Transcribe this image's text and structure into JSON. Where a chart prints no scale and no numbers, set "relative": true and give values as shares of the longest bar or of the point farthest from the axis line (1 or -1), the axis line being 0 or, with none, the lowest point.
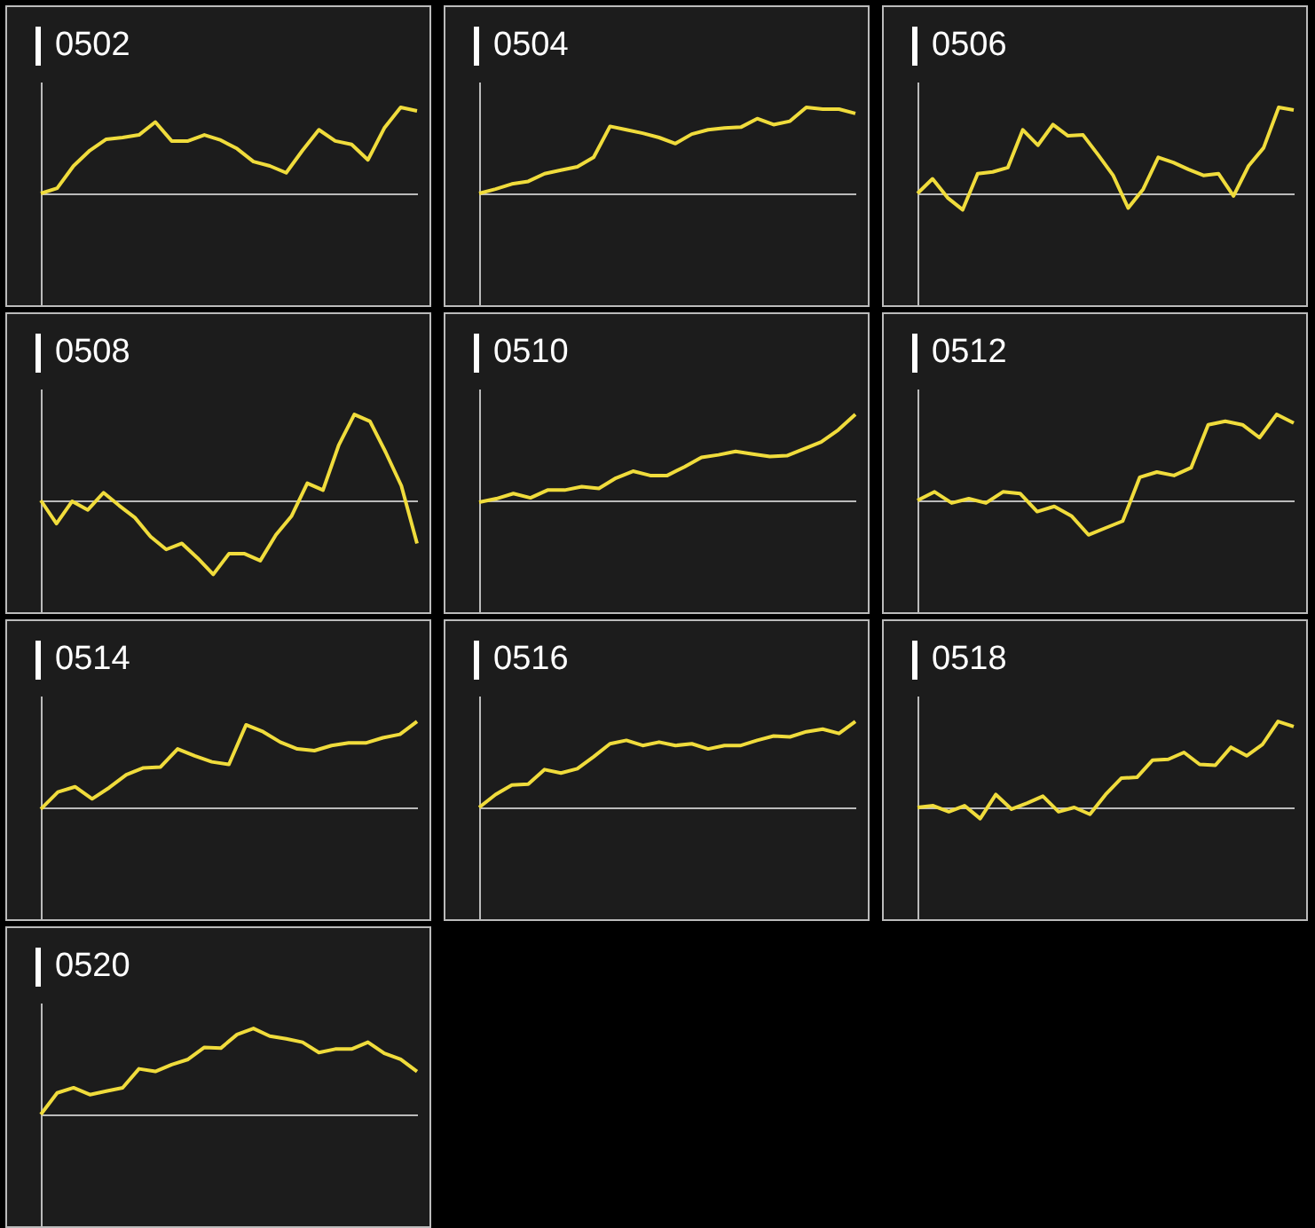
{
  "chart_data": [
    {
      "type": "line",
      "title": "0502",
      "relative": true,
      "categories": [
        null,
        null,
        null,
        null,
        null,
        null,
        null,
        null,
        null,
        null,
        null,
        null,
        null,
        null,
        null,
        null,
        null,
        null,
        null,
        null,
        null,
        null,
        null,
        null
      ],
      "series": [
        {
          "color": "#f0dc3c",
          "values": [
            0,
            0.06,
            0.32,
            0.5,
            0.63,
            0.65,
            0.68,
            0.83,
            0.61,
            0.61,
            0.68,
            0.62,
            0.52,
            0.37,
            0.32,
            0.24,
            0.5,
            0.74,
            0.61,
            0.57,
            0.39,
            0.76,
            1,
            0.96
          ]
        }
      ]
    },
    {
      "type": "line",
      "title": "0504",
      "relative": true,
      "categories": [
        null,
        null,
        null,
        null,
        null,
        null,
        null,
        null,
        null,
        null,
        null,
        null,
        null,
        null,
        null,
        null,
        null,
        null,
        null,
        null,
        null,
        null,
        null,
        null
      ],
      "series": [
        {
          "color": "#f0dc3c",
          "values": [
            0,
            0.05,
            0.11,
            0.14,
            0.23,
            0.27,
            0.31,
            0.42,
            0.78,
            0.74,
            0.7,
            0.65,
            0.58,
            0.69,
            0.74,
            0.76,
            0.77,
            0.87,
            0.8,
            0.84,
            1,
            0.98,
            0.98,
            0.93
          ]
        }
      ]
    },
    {
      "type": "line",
      "title": "0506",
      "relative": true,
      "categories": [
        null,
        null,
        null,
        null,
        null,
        null,
        null,
        null,
        null,
        null,
        null,
        null,
        null,
        null,
        null,
        null,
        null,
        null,
        null,
        null,
        null,
        null,
        null,
        null,
        null,
        null
      ],
      "series": [
        {
          "color": "#f0dc3c",
          "values": [
            0,
            0.17,
            -0.05,
            -0.19,
            0.23,
            0.25,
            0.3,
            0.74,
            0.56,
            0.8,
            0.67,
            0.68,
            0.45,
            0.21,
            -0.17,
            0.05,
            0.42,
            0.36,
            0.28,
            0.21,
            0.23,
            -0.03,
            0.32,
            0.53,
            1,
            0.97
          ]
        }
      ]
    },
    {
      "type": "line",
      "title": "0508",
      "relative": true,
      "categories": [
        null,
        null,
        null,
        null,
        null,
        null,
        null,
        null,
        null,
        null,
        null,
        null,
        null,
        null,
        null,
        null,
        null,
        null,
        null,
        null,
        null,
        null,
        null,
        null,
        null
      ],
      "series": [
        {
          "color": "#f0dc3c",
          "values": [
            0,
            -0.27,
            -0.01,
            -0.11,
            0.09,
            -0.06,
            -0.2,
            -0.42,
            -0.57,
            -0.5,
            -0.67,
            -0.86,
            -0.62,
            -0.62,
            -0.7,
            -0.4,
            -0.18,
            0.2,
            0.12,
            0.64,
            1,
            0.92,
            0.56,
            0.17,
            -0.5
          ]
        }
      ]
    },
    {
      "type": "line",
      "title": "0510",
      "relative": true,
      "categories": [
        null,
        null,
        null,
        null,
        null,
        null,
        null,
        null,
        null,
        null,
        null,
        null,
        null,
        null,
        null,
        null,
        null,
        null,
        null,
        null,
        null,
        null,
        null
      ],
      "series": [
        {
          "color": "#f0dc3c",
          "values": [
            -0.02,
            0.02,
            0.08,
            0.03,
            0.12,
            0.12,
            0.16,
            0.14,
            0.26,
            0.34,
            0.29,
            0.29,
            0.39,
            0.5,
            0.53,
            0.57,
            0.54,
            0.51,
            0.52,
            0.6,
            0.68,
            0.82,
            1
          ]
        }
      ]
    },
    {
      "type": "line",
      "title": "0512",
      "relative": true,
      "categories": [
        null,
        null,
        null,
        null,
        null,
        null,
        null,
        null,
        null,
        null,
        null,
        null,
        null,
        null,
        null,
        null,
        null,
        null,
        null,
        null,
        null,
        null,
        null
      ],
      "series": [
        {
          "color": "#f0dc3c",
          "values": [
            0,
            0.1,
            -0.03,
            0.02,
            -0.03,
            0.1,
            0.08,
            -0.13,
            -0.07,
            -0.18,
            -0.4,
            -0.32,
            -0.24,
            0.27,
            0.33,
            0.29,
            0.38,
            0.88,
            0.92,
            0.88,
            0.73,
            1,
            0.9
          ]
        }
      ]
    },
    {
      "type": "line",
      "title": "0514",
      "relative": true,
      "categories": [
        null,
        null,
        null,
        null,
        null,
        null,
        null,
        null,
        null,
        null,
        null,
        null,
        null,
        null,
        null,
        null,
        null,
        null,
        null,
        null,
        null,
        null,
        null
      ],
      "series": [
        {
          "color": "#f0dc3c",
          "values": [
            -0.02,
            0.18,
            0.24,
            0.1,
            0.23,
            0.38,
            0.46,
            0.47,
            0.68,
            0.6,
            0.53,
            0.5,
            0.96,
            0.88,
            0.76,
            0.68,
            0.66,
            0.72,
            0.75,
            0.75,
            0.81,
            0.85,
            1
          ]
        }
      ]
    },
    {
      "type": "line",
      "title": "0516",
      "relative": true,
      "categories": [
        null,
        null,
        null,
        null,
        null,
        null,
        null,
        null,
        null,
        null,
        null,
        null,
        null,
        null,
        null,
        null,
        null,
        null,
        null,
        null,
        null,
        null,
        null,
        null
      ],
      "series": [
        {
          "color": "#f0dc3c",
          "values": [
            0,
            0.15,
            0.26,
            0.27,
            0.44,
            0.4,
            0.45,
            0.59,
            0.74,
            0.78,
            0.72,
            0.76,
            0.72,
            0.74,
            0.68,
            0.72,
            0.72,
            0.78,
            0.83,
            0.82,
            0.88,
            0.91,
            0.86,
            1
          ]
        }
      ]
    },
    {
      "type": "line",
      "title": "0518",
      "relative": true,
      "categories": [
        null,
        null,
        null,
        null,
        null,
        null,
        null,
        null,
        null,
        null,
        null,
        null,
        null,
        null,
        null,
        null,
        null,
        null,
        null,
        null,
        null,
        null,
        null,
        null,
        null
      ],
      "series": [
        {
          "color": "#f0dc3c",
          "values": [
            0,
            0.02,
            -0.05,
            0.02,
            -0.13,
            0.15,
            -0.02,
            0.05,
            0.13,
            -0.05,
            0,
            -0.08,
            0.15,
            0.34,
            0.35,
            0.55,
            0.56,
            0.64,
            0.5,
            0.49,
            0.7,
            0.6,
            0.73,
            1,
            0.94
          ]
        }
      ]
    },
    {
      "type": "line",
      "title": "0520",
      "relative": true,
      "categories": [
        null,
        null,
        null,
        null,
        null,
        null,
        null,
        null,
        null,
        null,
        null,
        null,
        null,
        null,
        null,
        null,
        null,
        null,
        null,
        null,
        null,
        null,
        null,
        null
      ],
      "series": [
        {
          "color": "#f0dc3c",
          "values": [
            0,
            0.25,
            0.31,
            0.23,
            0.27,
            0.31,
            0.53,
            0.5,
            0.58,
            0.64,
            0.78,
            0.77,
            0.93,
            1,
            0.91,
            0.88,
            0.84,
            0.72,
            0.76,
            0.76,
            0.84,
            0.71,
            0.64,
            0.5
          ]
        }
      ]
    }
  ]
}
